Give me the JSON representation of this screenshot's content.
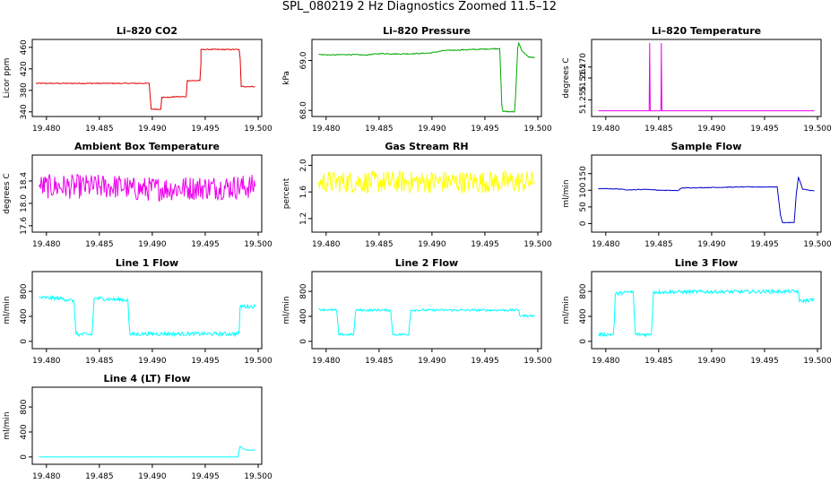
{
  "figure": {
    "title": "SPL_080219  2 Hz Diagnostics Zoomed 11.5–12"
  },
  "chart_data": [
    {
      "type": "line",
      "title": "Li–820 CO2",
      "ylabel": "Licor ppm",
      "color": "#e00000",
      "xlim": [
        19.479,
        19.5
      ],
      "ylim": [
        338,
        468
      ],
      "x_ticks": [
        "19.480",
        "19.485",
        "19.490",
        "19.495",
        "19.500"
      ],
      "y_ticks": [
        "340",
        "380",
        "420",
        "460"
      ],
      "noise": 0.8,
      "series": [
        {
          "x": [
            19.479,
            19.4897,
            19.4898,
            19.4899,
            19.4908,
            19.4909,
            19.4918,
            19.4919,
            19.4932,
            19.4933,
            19.4945,
            19.4946,
            19.4946,
            19.4982,
            19.4983,
            19.4984,
            19.4997
          ],
          "y": [
            393,
            393,
            370,
            345,
            345,
            367,
            367,
            368,
            368,
            398,
            398,
            430,
            456,
            456,
            440,
            387,
            387
          ]
        }
      ]
    },
    {
      "type": "line",
      "title": "Li–820 Pressure",
      "ylabel": "kPa",
      "color": "#00aa00",
      "xlim": [
        19.479,
        19.5
      ],
      "ylim": [
        67.95,
        69.35
      ],
      "x_ticks": [
        "19.480",
        "19.485",
        "19.490",
        "19.495",
        "19.500"
      ],
      "y_ticks": [
        "68.0",
        "69.0"
      ],
      "noise": 0.01,
      "series": [
        {
          "x": [
            19.4793,
            19.4805,
            19.482,
            19.4837,
            19.4852,
            19.4868,
            19.4888,
            19.4898,
            19.4912,
            19.4925,
            19.4938,
            19.4952,
            19.4964,
            19.4966,
            19.4967,
            19.4978,
            19.4979,
            19.4981,
            19.4982,
            19.4985,
            19.4991,
            19.4997
          ],
          "y": [
            69.12,
            69.11,
            69.12,
            69.11,
            69.14,
            69.13,
            69.14,
            69.15,
            69.2,
            69.21,
            69.22,
            69.23,
            69.24,
            68.1,
            67.98,
            67.97,
            68.3,
            69.25,
            69.35,
            69.2,
            69.07,
            69.06
          ]
        }
      ]
    },
    {
      "type": "line",
      "title": "Li–820 Temperature",
      "ylabel": "degrees C",
      "color": "#ee00ee",
      "xlim": [
        19.479,
        19.5
      ],
      "ylim": [
        51.249,
        51.281
      ],
      "x_ticks": [
        "19.480",
        "19.485",
        "19.490",
        "19.495",
        "19.500"
      ],
      "y_ticks": [
        "51.255",
        "51.265",
        "51.270"
      ],
      "noise": 0,
      "series": [
        {
          "x": [
            19.4793,
            19.4841,
            19.48415,
            19.4842,
            19.4852,
            19.48522,
            19.48525,
            19.4853,
            19.4997
          ],
          "y": [
            51.25,
            51.25,
            51.281,
            51.25,
            51.25,
            51.258,
            51.281,
            51.25,
            51.25
          ]
        }
      ]
    },
    {
      "type": "line",
      "title": "Ambient Box Temperature",
      "ylabel": "degrees C",
      "color": "#ee00ee",
      "xlim": [
        19.479,
        19.5
      ],
      "ylim": [
        17.55,
        18.8
      ],
      "x_ticks": [
        "19.480",
        "19.485",
        "19.490",
        "19.495",
        "19.500"
      ],
      "y_ticks": [
        "17.6",
        "18.0",
        "18.4"
      ],
      "noise": 0.22,
      "series": [
        {
          "x": [
            19.4793,
            19.4875,
            19.4878,
            19.4997
          ],
          "y": [
            18.3,
            18.3,
            18.25,
            18.3
          ]
        }
      ]
    },
    {
      "type": "line",
      "title": "Gas Stream RH",
      "ylabel": "percent",
      "color": "#ffff00",
      "xlim": [
        19.479,
        19.5
      ],
      "ylim": [
        1.05,
        2.1
      ],
      "x_ticks": [
        "19.480",
        "19.485",
        "19.490",
        "19.495",
        "19.500"
      ],
      "y_ticks": [
        "1.2",
        "1.6",
        "2.0"
      ],
      "noise": 0.17,
      "series": [
        {
          "x": [
            19.4793,
            19.4997
          ],
          "y": [
            1.75,
            1.75
          ]
        }
      ]
    },
    {
      "type": "line",
      "title": "Sample Flow",
      "ylabel": "ml/min",
      "color": "#0000cc",
      "xlim": [
        19.479,
        19.5
      ],
      "ylim": [
        -15,
        195
      ],
      "x_ticks": [
        "19.480",
        "19.485",
        "19.490",
        "19.495",
        "19.500"
      ],
      "y_ticks": [
        "0",
        "50",
        "100",
        "150"
      ],
      "noise": 1,
      "series": [
        {
          "x": [
            19.4793,
            19.4812,
            19.4822,
            19.4838,
            19.4852,
            19.4868,
            19.4872,
            19.4932,
            19.4962,
            19.4965,
            19.4967,
            19.4978,
            19.498,
            19.4982,
            19.4986,
            19.4997
          ],
          "y": [
            105,
            104,
            101,
            103,
            100,
            99,
            107,
            110,
            110,
            25,
            3,
            3,
            90,
            140,
            103,
            98
          ]
        }
      ]
    },
    {
      "type": "line",
      "title": "Line 1 Flow",
      "ylabel": "ml/min",
      "color": "#00ffff",
      "xlim": [
        19.479,
        19.5
      ],
      "ylim": [
        -60,
        1060
      ],
      "x_ticks": [
        "19.480",
        "19.485",
        "19.490",
        "19.495",
        "19.500"
      ],
      "y_ticks": [
        "0",
        "400",
        "800"
      ],
      "noise": 30,
      "series": [
        {
          "x": [
            19.4793,
            19.4812,
            19.4826,
            19.4827,
            19.4828,
            19.4843,
            19.4844,
            19.4845,
            19.4877,
            19.4878,
            19.4879,
            19.4892,
            19.4982,
            19.4983,
            19.4997
          ],
          "y": [
            700,
            690,
            650,
            350,
            110,
            110,
            400,
            690,
            660,
            300,
            110,
            120,
            120,
            560,
            560
          ]
        }
      ]
    },
    {
      "type": "line",
      "title": "Line 2 Flow",
      "ylabel": "ml/min",
      "color": "#00ffff",
      "xlim": [
        19.479,
        19.5
      ],
      "ylim": [
        -60,
        1060
      ],
      "x_ticks": [
        "19.480",
        "19.485",
        "19.490",
        "19.495",
        "19.500"
      ],
      "y_ticks": [
        "0",
        "400",
        "800"
      ],
      "noise": 18,
      "series": [
        {
          "x": [
            19.4793,
            19.481,
            19.4811,
            19.4812,
            19.4826,
            19.4827,
            19.4828,
            19.4861,
            19.4862,
            19.4863,
            19.4878,
            19.4879,
            19.488,
            19.4982,
            19.4983,
            19.4997
          ],
          "y": [
            510,
            500,
            300,
            110,
            110,
            300,
            500,
            500,
            300,
            110,
            110,
            300,
            500,
            500,
            410,
            410
          ]
        }
      ]
    },
    {
      "type": "line",
      "title": "Line 3 Flow",
      "ylabel": "ml/min",
      "color": "#00ffff",
      "xlim": [
        19.479,
        19.5
      ],
      "ylim": [
        -60,
        1060
      ],
      "x_ticks": [
        "19.480",
        "19.485",
        "19.490",
        "19.495",
        "19.500"
      ],
      "y_ticks": [
        "0",
        "400",
        "800"
      ],
      "noise": 28,
      "series": [
        {
          "x": [
            19.4793,
            19.4807,
            19.4808,
            19.4809,
            19.4822,
            19.4826,
            19.4827,
            19.4828,
            19.4843,
            19.4844,
            19.4845,
            19.4982,
            19.4983,
            19.4997
          ],
          "y": [
            110,
            110,
            300,
            760,
            790,
            790,
            400,
            110,
            110,
            400,
            790,
            800,
            640,
            670
          ]
        }
      ]
    },
    {
      "type": "line",
      "title": "Line 4 (LT) Flow",
      "ylabel": "ml/min",
      "color": "#00ffff",
      "xlim": [
        19.479,
        19.5
      ],
      "ylim": [
        -60,
        1060
      ],
      "x_ticks": [
        "19.480",
        "19.485",
        "19.490",
        "19.495",
        "19.500"
      ],
      "y_ticks": [
        "0",
        "400",
        "800"
      ],
      "noise": 2,
      "series": [
        {
          "x": [
            19.4793,
            19.4981,
            19.4982,
            19.4983,
            19.4986,
            19.499,
            19.4997
          ],
          "y": [
            0,
            0,
            100,
            170,
            130,
            110,
            110
          ]
        }
      ]
    }
  ]
}
